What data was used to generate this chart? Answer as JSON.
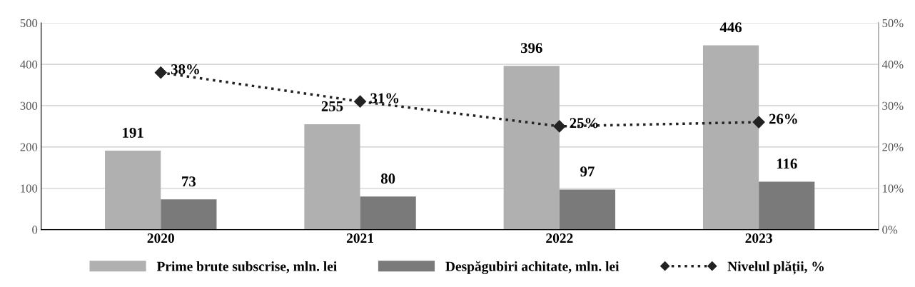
{
  "chart_data": {
    "type": "bar",
    "categories": [
      "2020",
      "2021",
      "2022",
      "2023"
    ],
    "series": [
      {
        "name": "Prime brute subscrise, mln. lei",
        "color": "#b0b0b0",
        "values": [
          191,
          255,
          396,
          446
        ],
        "value_labels": [
          "191",
          "255",
          "396",
          "446"
        ]
      },
      {
        "name": "Despăgubiri achitate, mln. lei",
        "color": "#7a7a7a",
        "values": [
          73,
          80,
          97,
          116
        ],
        "value_labels": [
          "73",
          "80",
          "97",
          "116"
        ]
      },
      {
        "name": "Nivelul plății, %",
        "type": "line",
        "axis": "y2",
        "color": "#222222",
        "marker": "diamond",
        "line_style": "dotted",
        "values": [
          38,
          31,
          25,
          26
        ],
        "value_labels": [
          "38%",
          "31%",
          "25%",
          "26%"
        ]
      }
    ],
    "ylim": [
      0,
      500
    ],
    "yticks": [
      0,
      100,
      200,
      300,
      400,
      500
    ],
    "y2lim": [
      0,
      50
    ],
    "y2ticks": [
      {
        "value": 0,
        "label": "0%"
      },
      {
        "value": 10,
        "label": "10%"
      },
      {
        "value": 20,
        "label": "20%"
      },
      {
        "value": 30,
        "label": "30%"
      },
      {
        "value": 40,
        "label": "40%"
      },
      {
        "value": 50,
        "label": "50%"
      }
    ],
    "grid": "y",
    "legend": "bottom"
  }
}
